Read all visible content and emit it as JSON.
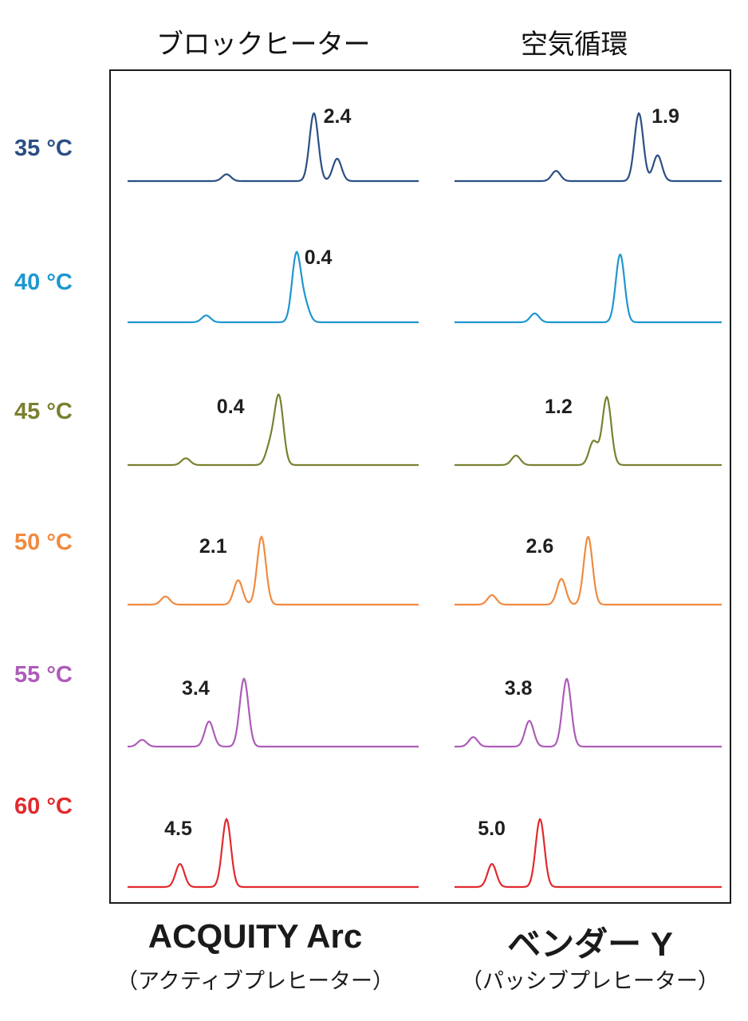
{
  "columns": {
    "left_title": "ブロックヒーター",
    "right_title": "空気循環"
  },
  "systems": {
    "left_name": "ACQUITY Arc",
    "left_sub": "（アクティブプレヒーター）",
    "right_name": "ベンダー Y",
    "right_sub": "（パッシブプレヒーター）"
  },
  "chart_data": {
    "type": "line",
    "rows": [
      {
        "temp": "35 °C",
        "color": "#2b4f84",
        "left_label": "2.4",
        "right_label": "1.9",
        "left_peaks": [
          [
            0.34,
            0.1
          ],
          [
            0.64,
            1.0
          ],
          [
            0.72,
            0.33
          ]
        ],
        "right_peaks": [
          [
            0.38,
            0.15
          ],
          [
            0.69,
            1.0
          ],
          [
            0.76,
            0.38
          ]
        ]
      },
      {
        "temp": "40 °C",
        "color": "#1e97cf",
        "left_label": "0.4",
        "right_label": "",
        "left_peaks": [
          [
            0.27,
            0.1
          ],
          [
            0.58,
            1.0
          ],
          [
            0.61,
            0.25
          ]
        ],
        "right_peaks": [
          [
            0.3,
            0.13
          ],
          [
            0.62,
            1.0
          ]
        ]
      },
      {
        "temp": "45 °C",
        "color": "#7a8030",
        "left_label": "0.4",
        "right_label": "1.2",
        "left_peaks": [
          [
            0.2,
            0.1
          ],
          [
            0.49,
            0.28
          ],
          [
            0.52,
            1.0
          ]
        ],
        "right_peaks": [
          [
            0.23,
            0.14
          ],
          [
            0.52,
            0.35
          ],
          [
            0.57,
            1.0
          ]
        ]
      },
      {
        "temp": "50 °C",
        "color": "#f08a3f",
        "left_label": "2.1",
        "right_label": "2.6",
        "left_peaks": [
          [
            0.13,
            0.12
          ],
          [
            0.38,
            0.36
          ],
          [
            0.46,
            1.0
          ]
        ],
        "right_peaks": [
          [
            0.14,
            0.14
          ],
          [
            0.4,
            0.38
          ],
          [
            0.5,
            1.0
          ]
        ]
      },
      {
        "temp": "55 °C",
        "color": "#ad5cb8",
        "left_label": "3.4",
        "right_label": "3.8",
        "left_peaks": [
          [
            0.05,
            0.1
          ],
          [
            0.28,
            0.37
          ],
          [
            0.4,
            1.0
          ]
        ],
        "right_peaks": [
          [
            0.07,
            0.14
          ],
          [
            0.28,
            0.38
          ],
          [
            0.42,
            1.0
          ]
        ]
      },
      {
        "temp": "60 °C",
        "color": "#e12a2e",
        "left_label": "4.5",
        "right_label": "5.0",
        "left_peaks": [
          [
            0.18,
            0.34
          ],
          [
            0.34,
            1.0
          ]
        ],
        "right_peaks": [
          [
            0.14,
            0.34
          ],
          [
            0.32,
            1.0
          ]
        ]
      }
    ]
  }
}
